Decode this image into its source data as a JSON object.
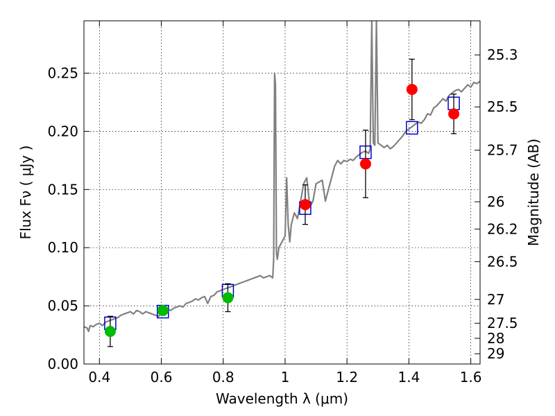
{
  "chart_data": {
    "type": "scatter",
    "xlabel": "Wavelength  λ (μm)",
    "ylabel": "Flux  Fν  ( μJy )",
    "y2label": "Magnitude (AB)",
    "xlim": [
      0.35,
      1.63
    ],
    "ylim": [
      0.0,
      0.295
    ],
    "grid": true,
    "xticks": [
      {
        "value": 0.4,
        "label": "0.4"
      },
      {
        "value": 0.6,
        "label": "0.6"
      },
      {
        "value": 0.8,
        "label": "0.8"
      },
      {
        "value": 1.0,
        "label": "1"
      },
      {
        "value": 1.2,
        "label": "1.2"
      },
      {
        "value": 1.4,
        "label": "1.4"
      },
      {
        "value": 1.6,
        "label": "1.6"
      }
    ],
    "yticks": [
      {
        "value": 0.0,
        "label": "0.00"
      },
      {
        "value": 0.05,
        "label": "0.05"
      },
      {
        "value": 0.1,
        "label": "0.10"
      },
      {
        "value": 0.15,
        "label": "0.15"
      },
      {
        "value": 0.2,
        "label": "0.20"
      },
      {
        "value": 0.25,
        "label": "0.25"
      }
    ],
    "y2ticks": [
      {
        "value": 25.3,
        "label": "25.3"
      },
      {
        "value": 25.5,
        "label": "25.5"
      },
      {
        "value": 25.7,
        "label": "25.7"
      },
      {
        "value": 26.0,
        "label": "26"
      },
      {
        "value": 26.2,
        "label": "26.2"
      },
      {
        "value": 26.5,
        "label": "26.5"
      },
      {
        "value": 27.0,
        "label": "27"
      },
      {
        "value": 27.5,
        "label": "27.5"
      },
      {
        "value": 28.0,
        "label": "28"
      },
      {
        "value": 29.0,
        "label": "29"
      }
    ],
    "colors": {
      "spectrum": "#808080",
      "model": "#0000cc",
      "red_points": "#ff0000",
      "green_points": "#00bb00",
      "errorbar": "#000000"
    },
    "series": [
      {
        "kind": "spectrum",
        "points": [
          [
            0.35,
            0.032
          ],
          [
            0.36,
            0.031
          ],
          [
            0.365,
            0.028
          ],
          [
            0.37,
            0.033
          ],
          [
            0.38,
            0.032
          ],
          [
            0.39,
            0.034
          ],
          [
            0.4,
            0.035
          ],
          [
            0.41,
            0.033
          ],
          [
            0.42,
            0.036
          ],
          [
            0.43,
            0.037
          ],
          [
            0.44,
            0.038
          ],
          [
            0.45,
            0.039
          ],
          [
            0.46,
            0.04
          ],
          [
            0.47,
            0.042
          ],
          [
            0.48,
            0.043
          ],
          [
            0.49,
            0.044
          ],
          [
            0.5,
            0.045
          ],
          [
            0.51,
            0.043
          ],
          [
            0.52,
            0.046
          ],
          [
            0.53,
            0.045
          ],
          [
            0.54,
            0.043
          ],
          [
            0.55,
            0.045
          ],
          [
            0.56,
            0.044
          ],
          [
            0.57,
            0.043
          ],
          [
            0.58,
            0.042
          ],
          [
            0.59,
            0.041
          ],
          [
            0.6,
            0.043
          ],
          [
            0.61,
            0.045
          ],
          [
            0.62,
            0.047
          ],
          [
            0.63,
            0.046
          ],
          [
            0.64,
            0.048
          ],
          [
            0.65,
            0.049
          ],
          [
            0.66,
            0.05
          ],
          [
            0.67,
            0.049
          ],
          [
            0.68,
            0.052
          ],
          [
            0.69,
            0.053
          ],
          [
            0.7,
            0.054
          ],
          [
            0.71,
            0.056
          ],
          [
            0.72,
            0.055
          ],
          [
            0.73,
            0.057
          ],
          [
            0.74,
            0.058
          ],
          [
            0.75,
            0.052
          ],
          [
            0.76,
            0.058
          ],
          [
            0.77,
            0.059
          ],
          [
            0.78,
            0.062
          ],
          [
            0.79,
            0.063
          ],
          [
            0.8,
            0.064
          ],
          [
            0.81,
            0.065
          ],
          [
            0.82,
            0.066
          ],
          [
            0.83,
            0.067
          ],
          [
            0.84,
            0.068
          ],
          [
            0.85,
            0.069
          ],
          [
            0.86,
            0.07
          ],
          [
            0.87,
            0.071
          ],
          [
            0.88,
            0.072
          ],
          [
            0.89,
            0.073
          ],
          [
            0.9,
            0.074
          ],
          [
            0.91,
            0.075
          ],
          [
            0.92,
            0.076
          ],
          [
            0.93,
            0.074
          ],
          [
            0.94,
            0.075
          ],
          [
            0.95,
            0.076
          ],
          [
            0.96,
            0.074
          ],
          [
            0.963,
            0.09
          ],
          [
            0.966,
            0.25
          ],
          [
            0.969,
            0.24
          ],
          [
            0.972,
            0.095
          ],
          [
            0.975,
            0.09
          ],
          [
            0.98,
            0.1
          ],
          [
            0.99,
            0.105
          ],
          [
            1.0,
            0.11
          ],
          [
            1.005,
            0.16
          ],
          [
            1.01,
            0.12
          ],
          [
            1.015,
            0.105
          ],
          [
            1.02,
            0.12
          ],
          [
            1.03,
            0.13
          ],
          [
            1.04,
            0.125
          ],
          [
            1.05,
            0.14
          ],
          [
            1.06,
            0.155
          ],
          [
            1.07,
            0.16
          ],
          [
            1.08,
            0.135
          ],
          [
            1.09,
            0.14
          ],
          [
            1.1,
            0.155
          ],
          [
            1.12,
            0.158
          ],
          [
            1.13,
            0.14
          ],
          [
            1.14,
            0.15
          ],
          [
            1.15,
            0.16
          ],
          [
            1.16,
            0.17
          ],
          [
            1.17,
            0.175
          ],
          [
            1.18,
            0.172
          ],
          [
            1.19,
            0.175
          ],
          [
            1.2,
            0.174
          ],
          [
            1.21,
            0.176
          ],
          [
            1.22,
            0.175
          ],
          [
            1.23,
            0.178
          ],
          [
            1.24,
            0.18
          ],
          [
            1.25,
            0.182
          ],
          [
            1.26,
            0.183
          ],
          [
            1.27,
            0.181
          ],
          [
            1.275,
            0.185
          ],
          [
            1.28,
            0.295
          ],
          [
            1.285,
            0.19
          ],
          [
            1.29,
            0.188
          ],
          [
            1.295,
            0.295
          ],
          [
            1.3,
            0.19
          ],
          [
            1.31,
            0.188
          ],
          [
            1.32,
            0.186
          ],
          [
            1.33,
            0.188
          ],
          [
            1.34,
            0.185
          ],
          [
            1.35,
            0.187
          ],
          [
            1.36,
            0.19
          ],
          [
            1.37,
            0.193
          ],
          [
            1.38,
            0.196
          ],
          [
            1.39,
            0.2
          ],
          [
            1.4,
            0.202
          ],
          [
            1.41,
            0.204
          ],
          [
            1.42,
            0.206
          ],
          [
            1.43,
            0.208
          ],
          [
            1.44,
            0.207
          ],
          [
            1.45,
            0.21
          ],
          [
            1.46,
            0.215
          ],
          [
            1.47,
            0.214
          ],
          [
            1.48,
            0.22
          ],
          [
            1.49,
            0.222
          ],
          [
            1.5,
            0.225
          ],
          [
            1.51,
            0.228
          ],
          [
            1.52,
            0.226
          ],
          [
            1.53,
            0.231
          ],
          [
            1.54,
            0.233
          ],
          [
            1.55,
            0.235
          ],
          [
            1.56,
            0.236
          ],
          [
            1.57,
            0.234
          ],
          [
            1.58,
            0.237
          ],
          [
            1.59,
            0.24
          ],
          [
            1.6,
            0.238
          ],
          [
            1.61,
            0.242
          ],
          [
            1.62,
            0.241
          ],
          [
            1.63,
            0.243
          ]
        ]
      },
      {
        "kind": "model",
        "marker": "open-square",
        "x": [
          0.435,
          0.605,
          0.815,
          1.065,
          1.26,
          1.41,
          1.545
        ],
        "y": [
          0.035,
          0.045,
          0.063,
          0.134,
          0.182,
          0.203,
          0.224
        ]
      },
      {
        "kind": "observed",
        "marker": "filled-circle",
        "points": [
          {
            "x": 0.435,
            "y": 0.028,
            "err": 0.013,
            "color": "green"
          },
          {
            "x": 0.605,
            "y": 0.046,
            "err": 0.004,
            "color": "green"
          },
          {
            "x": 0.815,
            "y": 0.057,
            "err": 0.012,
            "color": "green"
          },
          {
            "x": 1.065,
            "y": 0.137,
            "err": 0.017,
            "color": "red"
          },
          {
            "x": 1.26,
            "y": 0.172,
            "err": 0.029,
            "color": "red"
          },
          {
            "x": 1.41,
            "y": 0.236,
            "err": 0.026,
            "color": "red"
          },
          {
            "x": 1.545,
            "y": 0.215,
            "err": 0.017,
            "color": "red"
          }
        ]
      }
    ]
  }
}
